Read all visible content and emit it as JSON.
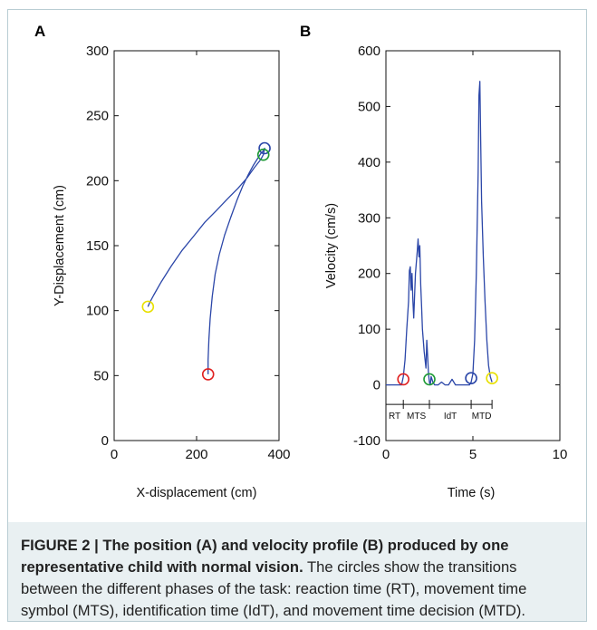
{
  "figure": {
    "caption_title": "FIGURE 2 | The position (A) and velocity profile (B) produced by one representative child with normal vision.",
    "caption_body": " The circles show the transitions between the different phases of the task: reaction time (RT), movement time symbol (MTS), identification time (IdT), and movement time decision (MTD)."
  },
  "chart_data": [
    {
      "panel_label": "A",
      "type": "line",
      "xlabel": "X-displacement (cm)",
      "ylabel": "Y-Displacement (cm)",
      "xlim": [
        0,
        400
      ],
      "ylim": [
        0,
        300
      ],
      "xticks": [
        0,
        200,
        400
      ],
      "yticks": [
        0,
        50,
        100,
        150,
        200,
        250,
        300
      ],
      "series": [
        {
          "color": "#2b46a8",
          "x": [
            228,
            228,
            230,
            233,
            238,
            245,
            255,
            268,
            283,
            298,
            312,
            326,
            338,
            348,
            356,
            362,
            365,
            362,
            355,
            340,
            322,
            300,
            275,
            248,
            220,
            192,
            164,
            138,
            114,
            96,
            86,
            82
          ],
          "y": [
            51,
            62,
            78,
            94,
            111,
            128,
            143,
            158,
            172,
            185,
            196,
            205,
            212,
            217,
            221,
            223,
            225,
            220,
            216,
            210,
            202,
            194,
            186,
            177,
            168,
            157,
            146,
            134,
            122,
            112,
            106,
            103
          ]
        }
      ],
      "markers": [
        {
          "label": "",
          "x": 228,
          "y": 51,
          "color": "#e02020"
        },
        {
          "label": "",
          "x": 82,
          "y": 103,
          "color": "#e8e000"
        },
        {
          "label": "",
          "x": 365,
          "y": 225,
          "color": "#2b46a8"
        },
        {
          "label": "",
          "x": 362,
          "y": 220,
          "color": "#1e9a35"
        }
      ]
    },
    {
      "panel_label": "B",
      "type": "line",
      "xlabel": "Time (s)",
      "ylabel": "Velocity (cm/s)",
      "xlim": [
        0,
        10
      ],
      "ylim": [
        -100,
        600
      ],
      "xticks": [
        0,
        5,
        10
      ],
      "yticks": [
        -100,
        0,
        100,
        200,
        300,
        400,
        500,
        600
      ],
      "series": [
        {
          "color": "#2b46a8",
          "x": [
            0,
            0.9,
            1.0,
            1.1,
            1.2,
            1.3,
            1.35,
            1.4,
            1.45,
            1.5,
            1.55,
            1.6,
            1.7,
            1.8,
            1.85,
            1.9,
            1.95,
            2.0,
            2.05,
            2.1,
            2.2,
            2.3,
            2.35,
            2.4,
            2.45,
            2.5,
            2.55,
            2.6,
            2.7,
            2.8,
            2.9,
            3.0,
            3.2,
            3.4,
            3.6,
            3.8,
            4.0,
            4.2,
            4.5,
            4.8,
            4.9,
            5.0,
            5.1,
            5.2,
            5.3,
            5.35,
            5.4,
            5.45,
            5.5,
            5.6,
            5.7,
            5.8,
            5.9,
            6.0,
            6.1
          ],
          "y": [
            0,
            0,
            15,
            45,
            100,
            150,
            205,
            212,
            170,
            200,
            150,
            120,
            200,
            240,
            262,
            230,
            250,
            180,
            140,
            100,
            60,
            30,
            80,
            50,
            20,
            5,
            0,
            15,
            5,
            0,
            0,
            0,
            5,
            0,
            0,
            10,
            0,
            0,
            0,
            0,
            5,
            20,
            80,
            200,
            380,
            520,
            545,
            440,
            330,
            230,
            150,
            80,
            35,
            15,
            5
          ]
        }
      ],
      "markers": [
        {
          "label": "",
          "x": 1.0,
          "y": 10,
          "color": "#e02020"
        },
        {
          "label": "",
          "x": 2.5,
          "y": 10,
          "color": "#1e9a35"
        },
        {
          "label": "",
          "x": 4.9,
          "y": 12,
          "color": "#2b46a8"
        },
        {
          "label": "",
          "x": 6.1,
          "y": 12,
          "color": "#e8e000"
        }
      ],
      "phase_bar": {
        "y": -35,
        "boundaries": [
          0,
          1.0,
          2.5,
          4.9,
          6.1
        ],
        "labels": [
          "RT",
          "MTS",
          "IdT",
          "MTD"
        ]
      }
    }
  ]
}
